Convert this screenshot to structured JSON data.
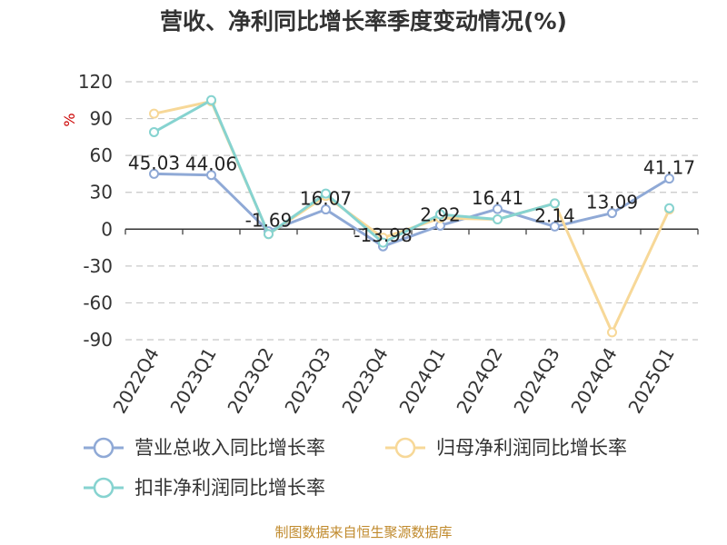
{
  "chart_data": {
    "type": "line",
    "title": "营收、净利同比增长率季度变动情况(%)",
    "ylabel": "%",
    "xlabel": "",
    "categories": [
      "2022Q4",
      "2023Q1",
      "2023Q2",
      "2023Q3",
      "2023Q4",
      "2024Q1",
      "2024Q2",
      "2024Q3",
      "2024Q4",
      "2025Q1"
    ],
    "yticks": [
      120,
      90,
      60,
      30,
      0,
      -30,
      -60,
      -90
    ],
    "ylim": [
      -90,
      120
    ],
    "grid": true,
    "legend_position": "bottom",
    "series": [
      {
        "name": "营业总收入同比增长率",
        "color": "#8fa9d6",
        "values": [
          45.03,
          44.06,
          -1.69,
          16.07,
          -13.98,
          2.92,
          16.41,
          2.14,
          13.09,
          41.17
        ],
        "labels": [
          "45.03",
          "44.06",
          "-1.69",
          "16.07",
          "-13.98",
          "2.92",
          "16.41",
          "2.14",
          "13.09",
          "41.17"
        ]
      },
      {
        "name": "归母净利润同比增长率",
        "color": "#f7d898",
        "values": [
          94,
          104,
          -4,
          27,
          -7,
          9,
          8,
          21,
          -84,
          16
        ]
      },
      {
        "name": "扣非净利润同比增长率",
        "color": "#86d3d0",
        "values": [
          79,
          105,
          -4,
          29,
          -11,
          12,
          8,
          21,
          null,
          17
        ]
      }
    ]
  },
  "source_note": "制图数据来自恒生聚源数据库"
}
